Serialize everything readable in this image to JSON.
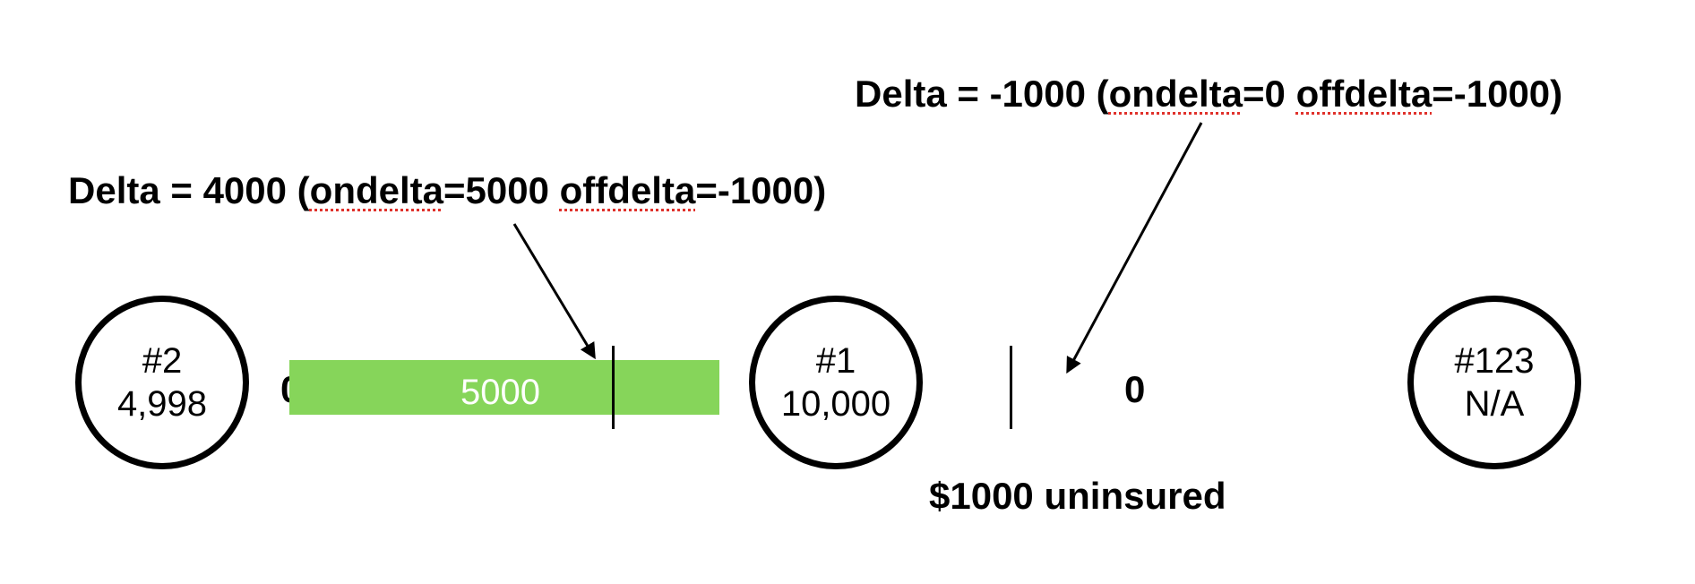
{
  "annotations": {
    "left": {
      "prefix": "Delta = 4000 (",
      "on_key": "ondelta",
      "on_value": "=5000 ",
      "off_key": "offdelta",
      "off_value": "=-1000)"
    },
    "right": {
      "prefix": "Delta = -1000 (",
      "on_key": "ondelta",
      "on_value": "=0 ",
      "off_key": "offdelta",
      "off_value": "=-1000)"
    }
  },
  "nodes": [
    {
      "id": "#2",
      "balance": "4,998"
    },
    {
      "id": "#1",
      "balance": "10,000"
    },
    {
      "id": "#123",
      "balance": "N/A"
    }
  ],
  "channel_left": {
    "left_amount": "0",
    "bar_value": "5000",
    "bar_color": "#86d55a"
  },
  "channel_right": {
    "right_amount": "0",
    "note": "$1000 uninsured"
  }
}
